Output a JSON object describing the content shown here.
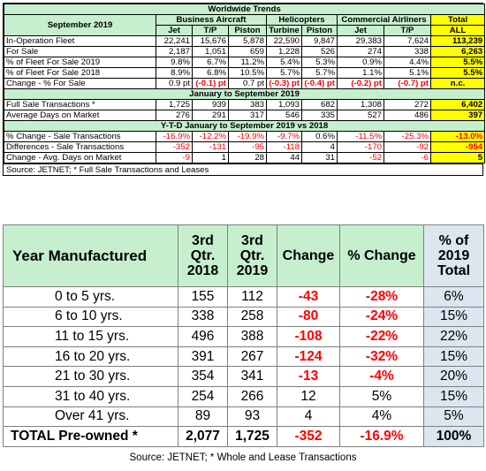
{
  "top": {
    "title": "Worldwide Trends",
    "period_label": "September 2019",
    "groups": [
      "Business Aircraft",
      "Helicopters",
      "Commercial Airliners",
      "Total"
    ],
    "subheaders": [
      "Jet",
      "T/P",
      "Piston",
      "Turbine",
      "Piston",
      "Jet",
      "T/P",
      "ALL"
    ],
    "rows": [
      {
        "label": "In-Operation Fleet",
        "cells": [
          "22,241",
          "15,676",
          "5,878",
          "22,590",
          "9,847",
          "29,383",
          "7,624"
        ],
        "total": "113,239"
      },
      {
        "label": "For Sale",
        "cells": [
          "2,187",
          "1,051",
          "659",
          "1,228",
          "526",
          "274",
          "338"
        ],
        "total": "6,263"
      },
      {
        "label": "% of Fleet For Sale 2019",
        "cells": [
          "9.8%",
          "6.7%",
          "11.2%",
          "5.4%",
          "5.3%",
          "0.9%",
          "4.4%"
        ],
        "total": "5.5%"
      },
      {
        "label": "% of Fleet For Sale 2018",
        "cells": [
          "8.9%",
          "6.8%",
          "10.5%",
          "5.7%",
          "5.7%",
          "1.1%",
          "5.1%"
        ],
        "total": "5.5%"
      },
      {
        "label": "Change - % For Sale",
        "cells": [
          "0.9 pt",
          "(-0.1) pt",
          "0.7 pt",
          "(-0.3) pt",
          "(-0.4) pt",
          "(-0.2) pt",
          "(-0.7) pt"
        ],
        "total": "n.c."
      }
    ],
    "section2_title": "January to September 2019",
    "rows2": [
      {
        "label": "Full Sale Transactions *",
        "cells": [
          "1,725",
          "939",
          "383",
          "1,093",
          "682",
          "1,308",
          "272"
        ],
        "total": "6,402"
      },
      {
        "label": "Average Days on Market",
        "cells": [
          "276",
          "291",
          "317",
          "546",
          "335",
          "527",
          "486"
        ],
        "total": "397"
      }
    ],
    "section3_title": "Y-T-D January to September 2019 vs 2018",
    "rows3": [
      {
        "label": "% Change  - Sale Transactions",
        "cells": [
          "-16.9%",
          "-12.2%",
          "-19.9%",
          "-9.7%",
          "0.6%",
          "-11.5%",
          "-25.3%"
        ],
        "total": "-13.0%"
      },
      {
        "label": "Differences - Sale Transactions",
        "cells": [
          "-352",
          "-131",
          "-95",
          "-118",
          "4",
          "-170",
          "-92"
        ],
        "total": "-954"
      },
      {
        "label": "Change  - Avg. Days on Market",
        "cells": [
          "-9",
          "1",
          "28",
          "44",
          "31",
          "-52",
          "-6"
        ],
        "total": "5"
      }
    ],
    "source": "Source: JETNET; * Full Sale Transactions and Leases"
  },
  "bottom": {
    "headers": [
      "Year Manufactured",
      "3rd Qtr. 2018",
      "3rd Qtr. 2019",
      "Change",
      "% Change",
      "% of 2019 Total"
    ],
    "rows": [
      {
        "label": "0 to 5 yrs.",
        "q2018": "155",
        "q2019": "112",
        "change": "-43",
        "pct_change": "-28%",
        "share": "6%"
      },
      {
        "label": "6 to 10 yrs.",
        "q2018": "338",
        "q2019": "258",
        "change": "-80",
        "pct_change": "-24%",
        "share": "15%"
      },
      {
        "label": "11 to 15 yrs.",
        "q2018": "496",
        "q2019": "388",
        "change": "-108",
        "pct_change": "-22%",
        "share": "22%"
      },
      {
        "label": "16 to 20 yrs.",
        "q2018": "391",
        "q2019": "267",
        "change": "-124",
        "pct_change": "-32%",
        "share": "15%"
      },
      {
        "label": "21 to 30 yrs.",
        "q2018": "354",
        "q2019": "341",
        "change": "-13",
        "pct_change": "-4%",
        "share": "20%"
      },
      {
        "label": "31 to 40 yrs.",
        "q2018": "254",
        "q2019": "266",
        "change": "12",
        "pct_change": "5%",
        "share": "15%"
      },
      {
        "label": "Over 41 yrs.",
        "q2018": "89",
        "q2019": "93",
        "change": "4",
        "pct_change": "4%",
        "share": "5%"
      }
    ],
    "total": {
      "label": "TOTAL Pre-owned *",
      "q2018": "2,077",
      "q2019": "1,725",
      "change": "-352",
      "pct_change": "-16.9%",
      "share": "100%"
    },
    "source": "Source: JETNET; * Whole and Lease Transactions"
  }
}
